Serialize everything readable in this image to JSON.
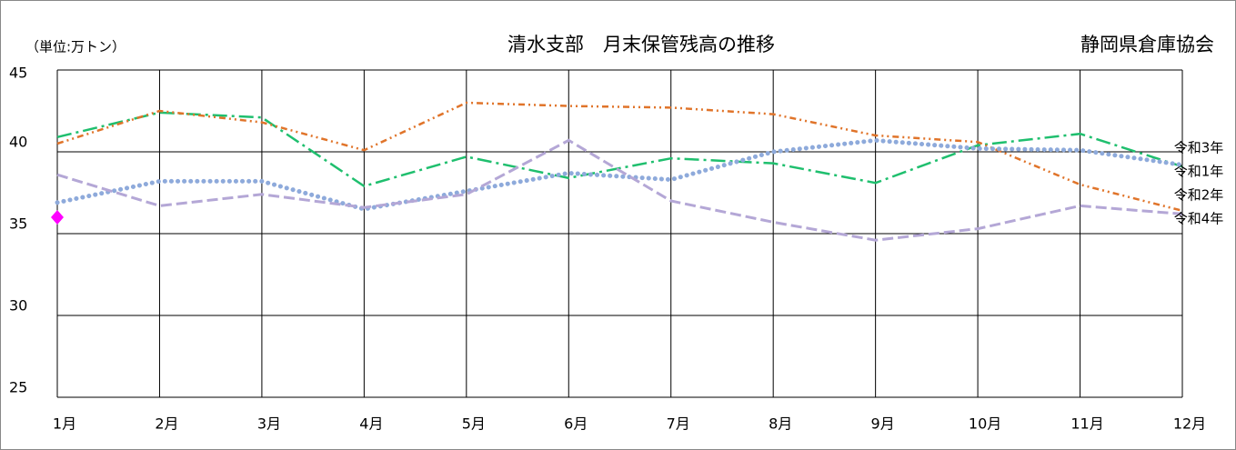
{
  "chart_data": {
    "type": "line",
    "title": "清水支部　月末保管残高の推移",
    "unit_label": "（単位:万トン）",
    "source": "静岡県倉庫協会",
    "categories": [
      "1月",
      "2月",
      "3月",
      "4月",
      "5月",
      "6月",
      "7月",
      "8月",
      "9月",
      "10月",
      "11月",
      "12月"
    ],
    "series": [
      {
        "name": "令和1年",
        "color": "#1fbf6e",
        "values": [
          40.9,
          42.4,
          42.1,
          37.9,
          39.7,
          38.4,
          39.6,
          39.3,
          38.1,
          40.4,
          41.1,
          39.1
        ]
      },
      {
        "name": "令和2年",
        "color": "#e0742a",
        "values": [
          40.5,
          42.5,
          41.8,
          40.1,
          43.0,
          42.8,
          42.7,
          42.3,
          41.0,
          40.6,
          38.0,
          36.4
        ]
      },
      {
        "name": "令和3年",
        "color": "#8eaadb",
        "values": [
          36.9,
          38.2,
          38.2,
          36.5,
          37.6,
          38.7,
          38.3,
          40.0,
          40.7,
          40.2,
          40.1,
          39.2
        ]
      },
      {
        "name": "令和4年",
        "color": "#b4a7d6",
        "values": [
          38.6,
          36.7,
          37.4,
          36.6,
          37.4,
          40.7,
          37.0,
          35.7,
          34.6,
          35.3,
          36.7,
          36.2
        ]
      },
      {
        "color": "#ff00ff",
        "values": [
          36.0,
          null,
          null,
          null,
          null,
          null,
          null,
          null,
          null,
          null,
          null,
          null
        ]
      }
    ],
    "ylim": [
      25,
      45
    ],
    "yticks": [
      25,
      30,
      35,
      40,
      45
    ],
    "grid": true
  }
}
